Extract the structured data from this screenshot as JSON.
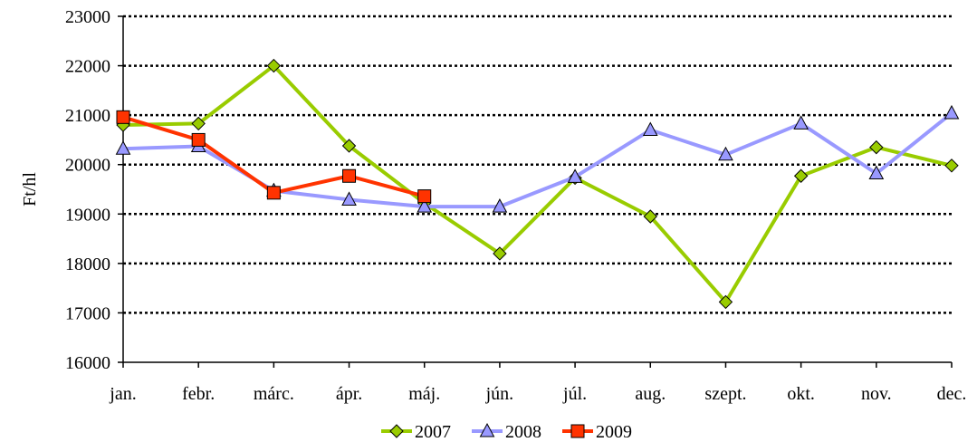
{
  "chart_data": {
    "type": "line",
    "title": "",
    "xlabel": "",
    "ylabel": "Ft/hl",
    "categories": [
      "jan.",
      "febr.",
      "márc.",
      "ápr.",
      "máj.",
      "jún.",
      "júl.",
      "aug.",
      "szept.",
      "okt.",
      "nov.",
      "dec."
    ],
    "ylim": [
      16000,
      23000
    ],
    "yticks": [
      16000,
      17000,
      18000,
      19000,
      20000,
      21000,
      22000,
      23000
    ],
    "ytick_labels": [
      "16000",
      "17000",
      "18000",
      "19000",
      "20000",
      "21000",
      "22000",
      "23000"
    ],
    "grid": "horizontal dotted",
    "legend_position": "bottom",
    "series": [
      {
        "name": "2007",
        "color": "#99cc00",
        "marker": "diamond",
        "marker_fill": "#99cc00",
        "values": [
          20800,
          20830,
          22000,
          20380,
          19220,
          18200,
          19730,
          18950,
          17220,
          19770,
          20350,
          19980
        ]
      },
      {
        "name": "2008",
        "color": "#9999ff",
        "marker": "triangle",
        "marker_fill": "#9999ff",
        "values": [
          20320,
          20370,
          19470,
          19290,
          19150,
          19150,
          19750,
          20700,
          20200,
          20830,
          19820,
          21040
        ]
      },
      {
        "name": "2009",
        "color": "#ff3300",
        "marker": "square",
        "marker_fill": "#ff3300",
        "values": [
          20960,
          20500,
          19430,
          19770,
          19360,
          null,
          null,
          null,
          null,
          null,
          null,
          null
        ]
      }
    ]
  }
}
